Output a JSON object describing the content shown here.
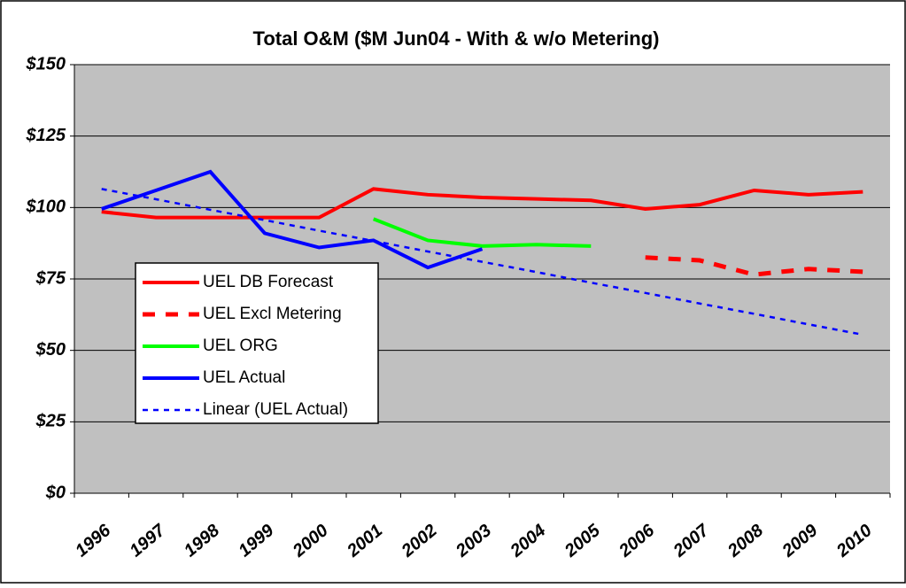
{
  "chart_data": {
    "type": "line",
    "title": "Total O&M ($M Jun04 - With & w/o Metering)",
    "categories": [
      "1996",
      "1997",
      "1998",
      "1999",
      "2000",
      "2001",
      "2002",
      "2003",
      "2004",
      "2005",
      "2006",
      "2007",
      "2008",
      "2009",
      "2010"
    ],
    "series": [
      {
        "name": "UEL DB Forecast",
        "color": "#ff0000",
        "style": "solid",
        "values": [
          98.5,
          96.5,
          96.5,
          96.5,
          96.5,
          106.5,
          104.5,
          103.5,
          103,
          102.5,
          99.5,
          101,
          106,
          104.5,
          105.5
        ]
      },
      {
        "name": "UEL Excl Metering",
        "color": "#ff0000",
        "style": "dashed",
        "values": [
          null,
          null,
          null,
          null,
          null,
          null,
          null,
          null,
          null,
          null,
          82.5,
          81.5,
          76.5,
          78.5,
          77.5
        ]
      },
      {
        "name": "UEL ORG",
        "color": "#00ff00",
        "style": "solid",
        "values": [
          null,
          null,
          null,
          null,
          null,
          96,
          88.5,
          86.5,
          87,
          86.5,
          null,
          null,
          null,
          null,
          null
        ]
      },
      {
        "name": "UEL Actual",
        "color": "#0000ff",
        "style": "solid",
        "values": [
          99.5,
          106,
          112.5,
          91,
          86,
          88.5,
          79,
          85.5,
          null,
          null,
          null,
          null,
          null,
          null,
          null
        ]
      },
      {
        "name": "Linear (UEL Actual)",
        "color": "#0000ff",
        "style": "dotted",
        "values": [
          106.5,
          102.9,
          99.2,
          95.6,
          91.9,
          88.3,
          84.6,
          81,
          77.4,
          73.7,
          70.1,
          66.4,
          62.8,
          59.1,
          55.5
        ]
      }
    ],
    "ylim": [
      0,
      150
    ],
    "yticks": [
      {
        "value": 0,
        "label": "$0"
      },
      {
        "value": 25,
        "label": "$25"
      },
      {
        "value": 50,
        "label": "$50"
      },
      {
        "value": 75,
        "label": "$75"
      },
      {
        "value": 100,
        "label": "$100"
      },
      {
        "value": 125,
        "label": "$125"
      },
      {
        "value": 150,
        "label": "$150"
      }
    ],
    "grid": true
  }
}
